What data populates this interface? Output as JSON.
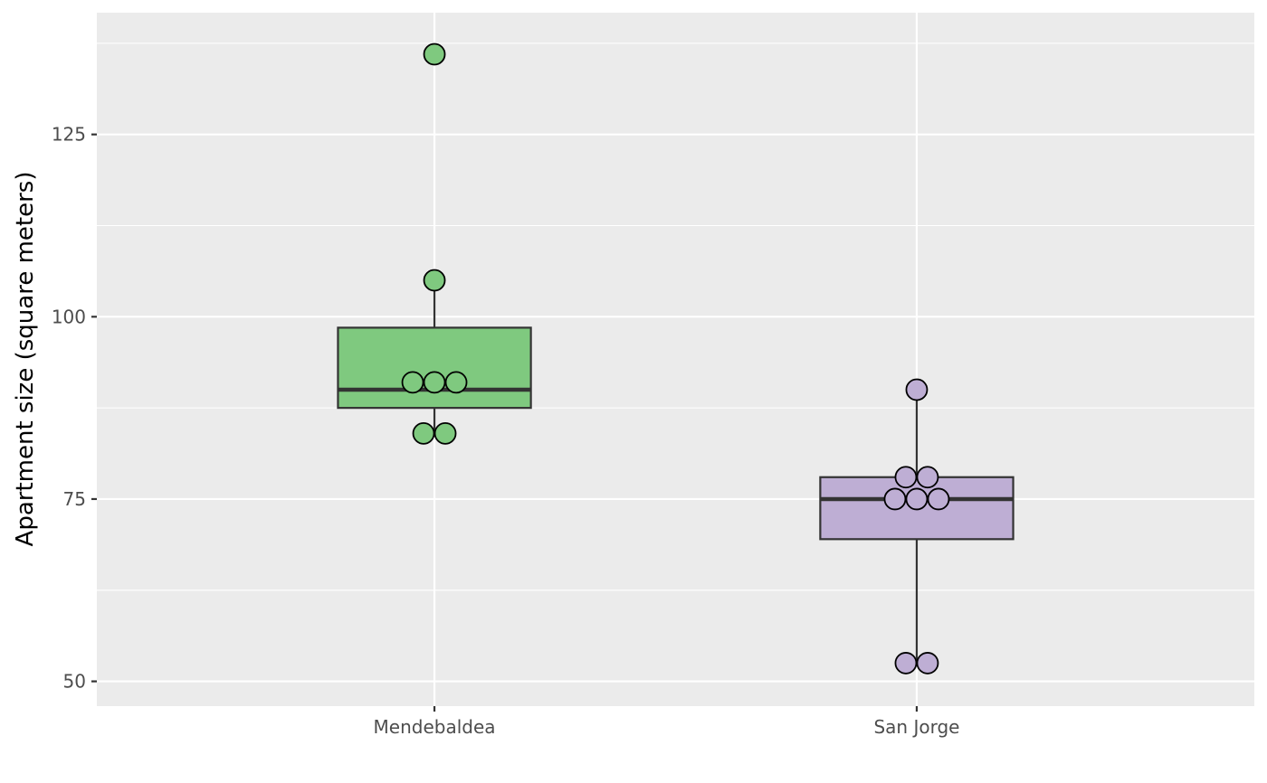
{
  "chart_data": {
    "type": "boxplot",
    "title": "",
    "xlabel": "",
    "ylabel": "Apartment size (square meters)",
    "ylim": [
      46.6,
      141.7
    ],
    "yticks": [
      50,
      75,
      100,
      125
    ],
    "ytick_labels": [
      "50",
      "75",
      "100",
      "125"
    ],
    "y_minor_ticks": [
      62.5,
      87.5,
      112.5,
      137.5
    ],
    "grid": true,
    "legend": "none",
    "panel_background": "#ebebeb",
    "grid_color": "#ffffff",
    "categories": [
      "Mendebaldea",
      "San Jorge"
    ],
    "groups": [
      {
        "name": "Mendebaldea",
        "fill": "#7fc97f",
        "q1": 87.5,
        "median": 90,
        "q3": 98.5,
        "whisker_low": 84,
        "whisker_high": 105,
        "points": [
          {
            "y": 136,
            "offset": 0
          },
          {
            "y": 105,
            "offset": 0
          },
          {
            "y": 91,
            "offset": -1
          },
          {
            "y": 91,
            "offset": 0
          },
          {
            "y": 91,
            "offset": 1
          },
          {
            "y": 84,
            "offset": -0.5
          },
          {
            "y": 84,
            "offset": 0.5
          }
        ]
      },
      {
        "name": "San Jorge",
        "fill": "#beaed4",
        "q1": 69.5,
        "median": 75,
        "q3": 78,
        "whisker_low": 52.5,
        "whisker_high": 90,
        "points": [
          {
            "y": 90,
            "offset": 0
          },
          {
            "y": 78,
            "offset": -0.5
          },
          {
            "y": 78,
            "offset": 0.5
          },
          {
            "y": 75,
            "offset": -1
          },
          {
            "y": 75,
            "offset": 0
          },
          {
            "y": 75,
            "offset": 1
          },
          {
            "y": 52.5,
            "offset": -0.5
          },
          {
            "y": 52.5,
            "offset": 0.5
          }
        ]
      }
    ]
  }
}
